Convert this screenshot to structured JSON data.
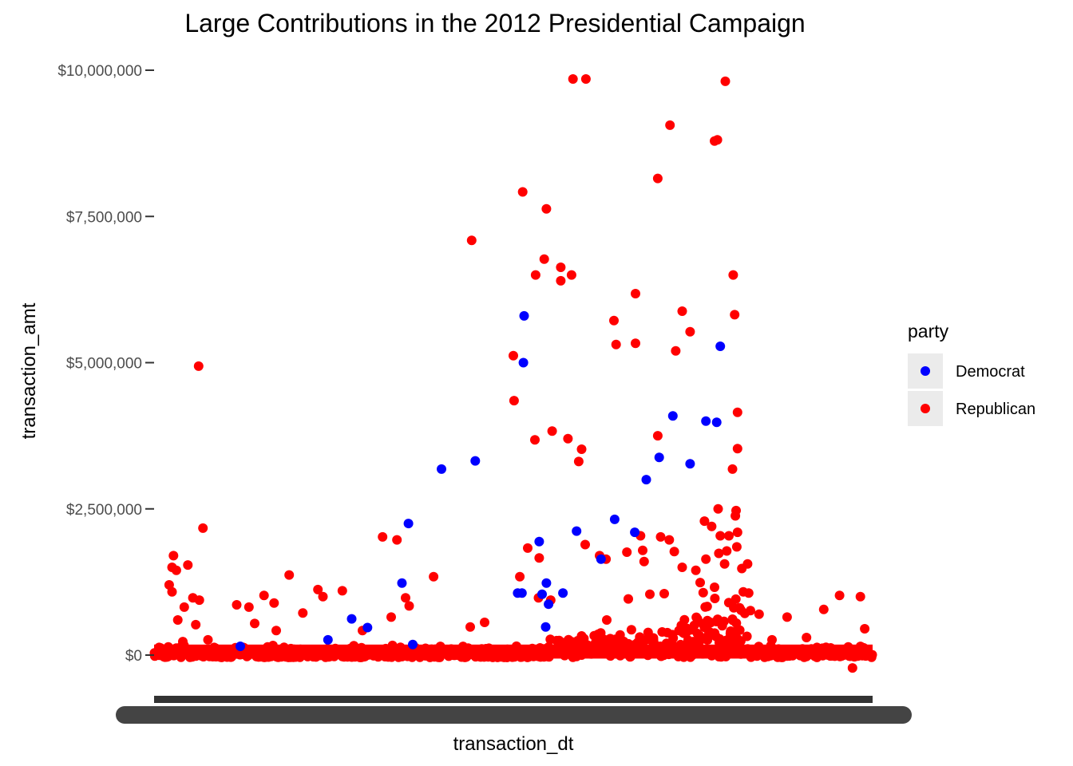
{
  "chart_data": {
    "type": "scatter",
    "title": "Large Contributions in the 2012 Presidential Campaign",
    "xlabel": "transaction_dt",
    "ylabel": "transaction_amt",
    "ylim": [
      -300000,
      10200000
    ],
    "yticks": [
      {
        "value": 0,
        "label": "$0"
      },
      {
        "value": 2500000,
        "label": "$2,500,000"
      },
      {
        "value": 5000000,
        "label": "$5,000,000"
      },
      {
        "value": 7500000,
        "label": "$7,500,000"
      },
      {
        "value": 10000000,
        "label": "$10,000,000"
      }
    ],
    "x_tick_labels_overlapping": true,
    "grid": false,
    "legend": {
      "title": "party",
      "position": "right",
      "entries": [
        {
          "name": "Democrat",
          "color": "#0000ff"
        },
        {
          "name": "Republican",
          "color": "#ff0000"
        }
      ]
    },
    "series": [
      {
        "name": "Democrat",
        "color": "#0000ff",
        "points": [
          {
            "x": 0.242,
            "y": 260000
          },
          {
            "x": 0.275,
            "y": 620000
          },
          {
            "x": 0.297,
            "y": 470000
          },
          {
            "x": 0.345,
            "y": 1230000
          },
          {
            "x": 0.354,
            "y": 2250000
          },
          {
            "x": 0.4,
            "y": 3180000
          },
          {
            "x": 0.447,
            "y": 3320000
          },
          {
            "x": 0.506,
            "y": 1060000
          },
          {
            "x": 0.512,
            "y": 1060000
          },
          {
            "x": 0.515,
            "y": 5800000
          },
          {
            "x": 0.514,
            "y": 5000000
          },
          {
            "x": 0.536,
            "y": 1940000
          },
          {
            "x": 0.546,
            "y": 1230000
          },
          {
            "x": 0.549,
            "y": 870000
          },
          {
            "x": 0.569,
            "y": 1060000
          },
          {
            "x": 0.588,
            "y": 2120000
          },
          {
            "x": 0.622,
            "y": 1640000
          },
          {
            "x": 0.641,
            "y": 2320000
          },
          {
            "x": 0.669,
            "y": 2100000
          },
          {
            "x": 0.685,
            "y": 3000000
          },
          {
            "x": 0.703,
            "y": 3380000
          },
          {
            "x": 0.722,
            "y": 4090000
          },
          {
            "x": 0.746,
            "y": 3270000
          },
          {
            "x": 0.768,
            "y": 4000000
          },
          {
            "x": 0.783,
            "y": 3980000
          },
          {
            "x": 0.788,
            "y": 5280000
          },
          {
            "x": 0.54,
            "y": 1040000
          },
          {
            "x": 0.545,
            "y": 480000
          },
          {
            "x": 0.12,
            "y": 150000
          },
          {
            "x": 0.36,
            "y": 180000
          }
        ]
      },
      {
        "name": "Republican",
        "color": "#ff0000",
        "points": [
          {
            "x": 0.027,
            "y": 1700000
          },
          {
            "x": 0.025,
            "y": 1500000
          },
          {
            "x": 0.031,
            "y": 1450000
          },
          {
            "x": 0.021,
            "y": 1200000
          },
          {
            "x": 0.025,
            "y": 1080000
          },
          {
            "x": 0.047,
            "y": 1540000
          },
          {
            "x": 0.054,
            "y": 980000
          },
          {
            "x": 0.062,
            "y": 4940000
          },
          {
            "x": 0.068,
            "y": 2170000
          },
          {
            "x": 0.063,
            "y": 940000
          },
          {
            "x": 0.042,
            "y": 820000
          },
          {
            "x": 0.033,
            "y": 600000
          },
          {
            "x": 0.058,
            "y": 520000
          },
          {
            "x": 0.115,
            "y": 860000
          },
          {
            "x": 0.132,
            "y": 820000
          },
          {
            "x": 0.153,
            "y": 1020000
          },
          {
            "x": 0.167,
            "y": 890000
          },
          {
            "x": 0.188,
            "y": 1370000
          },
          {
            "x": 0.207,
            "y": 720000
          },
          {
            "x": 0.228,
            "y": 1120000
          },
          {
            "x": 0.235,
            "y": 1000000
          },
          {
            "x": 0.262,
            "y": 1100000
          },
          {
            "x": 0.318,
            "y": 2020000
          },
          {
            "x": 0.338,
            "y": 1970000
          },
          {
            "x": 0.35,
            "y": 980000
          },
          {
            "x": 0.355,
            "y": 840000
          },
          {
            "x": 0.389,
            "y": 1340000
          },
          {
            "x": 0.442,
            "y": 7090000
          },
          {
            "x": 0.5,
            "y": 5120000
          },
          {
            "x": 0.501,
            "y": 4350000
          },
          {
            "x": 0.513,
            "y": 7920000
          },
          {
            "x": 0.531,
            "y": 6500000
          },
          {
            "x": 0.53,
            "y": 3680000
          },
          {
            "x": 0.546,
            "y": 7630000
          },
          {
            "x": 0.543,
            "y": 6770000
          },
          {
            "x": 0.554,
            "y": 3830000
          },
          {
            "x": 0.566,
            "y": 6630000
          },
          {
            "x": 0.566,
            "y": 6400000
          },
          {
            "x": 0.581,
            "y": 6500000
          },
          {
            "x": 0.576,
            "y": 3700000
          },
          {
            "x": 0.595,
            "y": 3520000
          },
          {
            "x": 0.591,
            "y": 3310000
          },
          {
            "x": 0.583,
            "y": 9850000
          },
          {
            "x": 0.601,
            "y": 9850000
          },
          {
            "x": 0.6,
            "y": 1890000
          },
          {
            "x": 0.536,
            "y": 1660000
          },
          {
            "x": 0.52,
            "y": 1830000
          },
          {
            "x": 0.509,
            "y": 1340000
          },
          {
            "x": 0.535,
            "y": 980000
          },
          {
            "x": 0.552,
            "y": 940000
          },
          {
            "x": 0.62,
            "y": 1700000
          },
          {
            "x": 0.629,
            "y": 1640000
          },
          {
            "x": 0.64,
            "y": 5720000
          },
          {
            "x": 0.643,
            "y": 5310000
          },
          {
            "x": 0.67,
            "y": 6180000
          },
          {
            "x": 0.67,
            "y": 5330000
          },
          {
            "x": 0.658,
            "y": 1760000
          },
          {
            "x": 0.677,
            "y": 2040000
          },
          {
            "x": 0.68,
            "y": 1790000
          },
          {
            "x": 0.682,
            "y": 1600000
          },
          {
            "x": 0.701,
            "y": 8150000
          },
          {
            "x": 0.718,
            "y": 9060000
          },
          {
            "x": 0.701,
            "y": 3750000
          },
          {
            "x": 0.726,
            "y": 5200000
          },
          {
            "x": 0.735,
            "y": 5880000
          },
          {
            "x": 0.746,
            "y": 5530000
          },
          {
            "x": 0.705,
            "y": 2020000
          },
          {
            "x": 0.717,
            "y": 1970000
          },
          {
            "x": 0.724,
            "y": 1770000
          },
          {
            "x": 0.735,
            "y": 1500000
          },
          {
            "x": 0.754,
            "y": 1450000
          },
          {
            "x": 0.766,
            "y": 2290000
          },
          {
            "x": 0.776,
            "y": 2200000
          },
          {
            "x": 0.78,
            "y": 8790000
          },
          {
            "x": 0.784,
            "y": 8810000
          },
          {
            "x": 0.795,
            "y": 9810000
          },
          {
            "x": 0.806,
            "y": 6500000
          },
          {
            "x": 0.808,
            "y": 5820000
          },
          {
            "x": 0.812,
            "y": 4150000
          },
          {
            "x": 0.812,
            "y": 3530000
          },
          {
            "x": 0.805,
            "y": 3180000
          },
          {
            "x": 0.785,
            "y": 2500000
          },
          {
            "x": 0.81,
            "y": 2470000
          },
          {
            "x": 0.809,
            "y": 2380000
          },
          {
            "x": 0.788,
            "y": 2040000
          },
          {
            "x": 0.8,
            "y": 2040000
          },
          {
            "x": 0.812,
            "y": 2100000
          },
          {
            "x": 0.786,
            "y": 1740000
          },
          {
            "x": 0.797,
            "y": 1780000
          },
          {
            "x": 0.811,
            "y": 1850000
          },
          {
            "x": 0.768,
            "y": 1640000
          },
          {
            "x": 0.794,
            "y": 1560000
          },
          {
            "x": 0.826,
            "y": 1560000
          },
          {
            "x": 0.818,
            "y": 1480000
          },
          {
            "x": 0.842,
            "y": 700000
          },
          {
            "x": 0.881,
            "y": 650000
          },
          {
            "x": 0.932,
            "y": 780000
          },
          {
            "x": 0.954,
            "y": 1020000
          },
          {
            "x": 0.983,
            "y": 1000000
          },
          {
            "x": 0.972,
            "y": -220000
          },
          {
            "x": 0.989,
            "y": 450000
          },
          {
            "x": 0.908,
            "y": 300000
          },
          {
            "x": 0.86,
            "y": 260000
          },
          {
            "x": 0.04,
            "y": 230000
          },
          {
            "x": 0.075,
            "y": 260000
          },
          {
            "x": 0.14,
            "y": 540000
          },
          {
            "x": 0.17,
            "y": 420000
          },
          {
            "x": 0.29,
            "y": 420000
          },
          {
            "x": 0.33,
            "y": 650000
          },
          {
            "x": 0.44,
            "y": 480000
          },
          {
            "x": 0.46,
            "y": 560000
          },
          {
            "x": 0.63,
            "y": 600000
          },
          {
            "x": 0.66,
            "y": 960000
          },
          {
            "x": 0.69,
            "y": 1040000
          },
          {
            "x": 0.71,
            "y": 1050000
          },
          {
            "x": 0.76,
            "y": 1240000
          },
          {
            "x": 0.78,
            "y": 1160000
          },
          {
            "x": 0.82,
            "y": 1080000
          },
          {
            "x": 0.83,
            "y": 760000
          }
        ]
      }
    ]
  }
}
